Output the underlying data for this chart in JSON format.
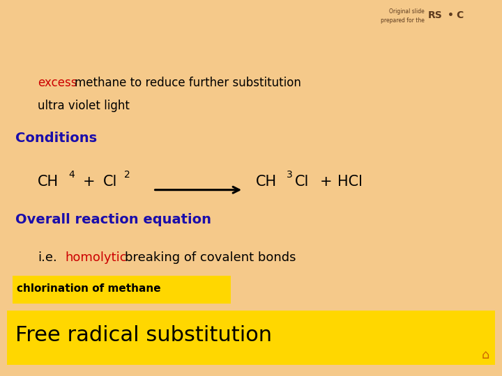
{
  "bg_color": "#F5C98A",
  "title_bg_color": "#FFD700",
  "subtitle_bg_color": "#FFD700",
  "title_text": "Free radical substitution",
  "title_color": "#000000",
  "title_fontsize": 22,
  "subtitle_text": "chlorination of methane",
  "subtitle_color": "#000000",
  "subtitle_fontsize": 11,
  "ie_fontsize": 13,
  "ie_color_black": "#000000",
  "ie_color_red": "#CC0000",
  "overall_text": "Overall reaction equation",
  "overall_color": "#1A0DAB",
  "overall_fontsize": 14,
  "conditions_text": "Conditions",
  "conditions_color": "#1A0DAB",
  "conditions_fontsize": 14,
  "uv_text": "ultra violet light",
  "uv_color": "#000000",
  "uv_fontsize": 12,
  "excess_color_red": "#CC0000",
  "excess_color_black": "#000000",
  "excess_fontsize": 12,
  "footer_color": "#5C3A1E",
  "home_color": "#CC6600",
  "eq_fontsize": 15,
  "eq_sub_fontsize": 10
}
